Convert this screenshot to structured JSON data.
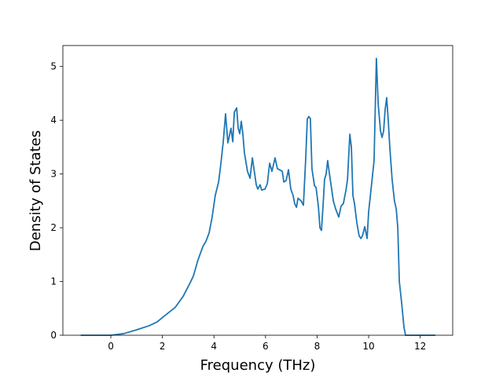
{
  "chart_data": {
    "type": "line",
    "xlabel": "Frequency (THz)",
    "ylabel": "Density of States",
    "x": [
      -1.17,
      0,
      0.5,
      1.0,
      1.5,
      1.8,
      2.0,
      2.5,
      2.8,
      3.05,
      3.2,
      3.38,
      3.57,
      3.69,
      3.81,
      3.93,
      4.05,
      4.18,
      4.27,
      4.36,
      4.45,
      4.54,
      4.66,
      4.73,
      4.79,
      4.88,
      4.94,
      5.0,
      5.06,
      5.12,
      5.18,
      5.3,
      5.4,
      5.49,
      5.55,
      5.64,
      5.7,
      5.79,
      5.85,
      5.98,
      6.07,
      6.16,
      6.25,
      6.37,
      6.46,
      6.65,
      6.71,
      6.8,
      6.89,
      6.98,
      7.07,
      7.13,
      7.2,
      7.26,
      7.38,
      7.47,
      7.56,
      7.62,
      7.68,
      7.74,
      7.8,
      7.9,
      7.96,
      8.05,
      8.11,
      8.17,
      8.23,
      8.29,
      8.35,
      8.41,
      8.48,
      8.54,
      8.63,
      8.72,
      8.84,
      8.93,
      9.02,
      9.12,
      9.18,
      9.27,
      9.33,
      9.39,
      9.45,
      9.54,
      9.63,
      9.7,
      9.76,
      9.85,
      9.94,
      10.0,
      10.09,
      10.21,
      10.3,
      10.37,
      10.46,
      10.52,
      10.58,
      10.64,
      10.7,
      10.76,
      10.82,
      10.91,
      11.0,
      11.07,
      11.13,
      11.19,
      11.28,
      11.37,
      11.43,
      12.59
    ],
    "series": [
      {
        "color": "#1f77b4",
        "values": [
          0,
          0,
          0.03,
          0.1,
          0.18,
          0.25,
          0.33,
          0.52,
          0.72,
          0.95,
          1.1,
          1.4,
          1.65,
          1.75,
          1.9,
          2.2,
          2.6,
          2.85,
          3.2,
          3.6,
          4.12,
          3.58,
          3.85,
          3.6,
          4.15,
          4.23,
          3.85,
          3.75,
          3.98,
          3.75,
          3.4,
          3.05,
          2.92,
          3.3,
          3.1,
          2.8,
          2.72,
          2.8,
          2.7,
          2.72,
          2.82,
          3.2,
          3.05,
          3.3,
          3.1,
          3.05,
          2.85,
          2.88,
          3.08,
          2.72,
          2.6,
          2.45,
          2.38,
          2.55,
          2.5,
          2.42,
          3.3,
          4.02,
          4.07,
          4.03,
          3.1,
          2.78,
          2.75,
          2.4,
          2.0,
          1.95,
          2.4,
          2.9,
          3.0,
          3.25,
          3.0,
          2.8,
          2.5,
          2.35,
          2.2,
          2.4,
          2.45,
          2.7,
          2.9,
          3.74,
          3.5,
          2.6,
          2.45,
          2.1,
          1.85,
          1.8,
          1.85,
          2.02,
          1.8,
          2.3,
          2.7,
          3.25,
          5.15,
          4.3,
          3.8,
          3.68,
          3.8,
          4.2,
          4.42,
          4.0,
          3.5,
          2.9,
          2.5,
          2.35,
          2.0,
          1.0,
          0.6,
          0.15,
          0,
          0
        ]
      }
    ],
    "xlim": [
      -1.86,
      13.26
    ],
    "xticks": [
      0,
      2,
      4,
      6,
      8,
      10,
      12
    ],
    "ylim": [
      0,
      5.39
    ],
    "yticks": [
      0,
      1,
      2,
      3,
      4,
      5
    ]
  }
}
